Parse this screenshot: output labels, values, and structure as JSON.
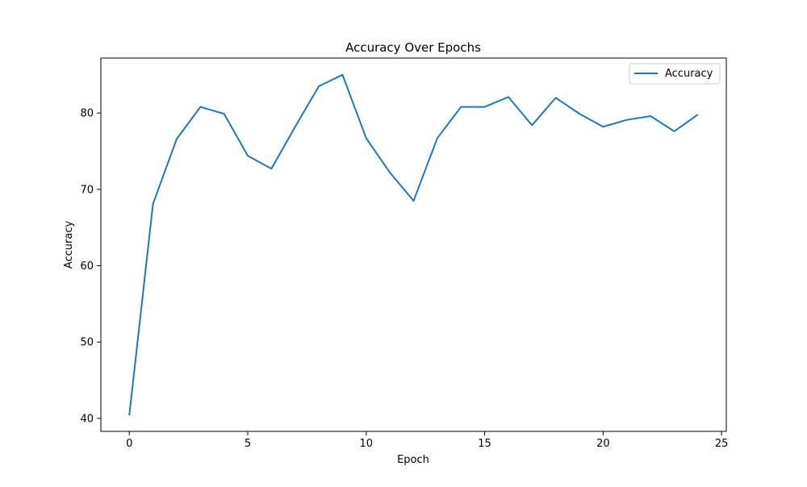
{
  "chart_data": {
    "type": "line",
    "title": "Accuracy Over Epochs",
    "xlabel": "Epoch",
    "ylabel": "Accuracy",
    "xlim": [
      -1.2,
      25.2
    ],
    "ylim": [
      38.3,
      87.2
    ],
    "x_ticks": [
      0,
      5,
      10,
      15,
      20,
      25
    ],
    "y_ticks": [
      40,
      50,
      60,
      70,
      80
    ],
    "grid": false,
    "legend": "top-right",
    "series": [
      {
        "name": "Accuracy",
        "color": "#1f77b4",
        "x": [
          0,
          1,
          2,
          3,
          4,
          5,
          6,
          7,
          8,
          9,
          10,
          11,
          12,
          13,
          14,
          15,
          16,
          17,
          18,
          19,
          20,
          21,
          22,
          23,
          24
        ],
        "y": [
          40.4,
          68.1,
          76.6,
          80.8,
          79.9,
          74.4,
          72.7,
          78.2,
          83.5,
          85.0,
          76.7,
          72.2,
          68.5,
          76.7,
          80.8,
          80.8,
          82.1,
          78.4,
          82.0,
          79.9,
          78.2,
          79.1,
          79.6,
          77.6,
          79.8
        ]
      }
    ]
  }
}
